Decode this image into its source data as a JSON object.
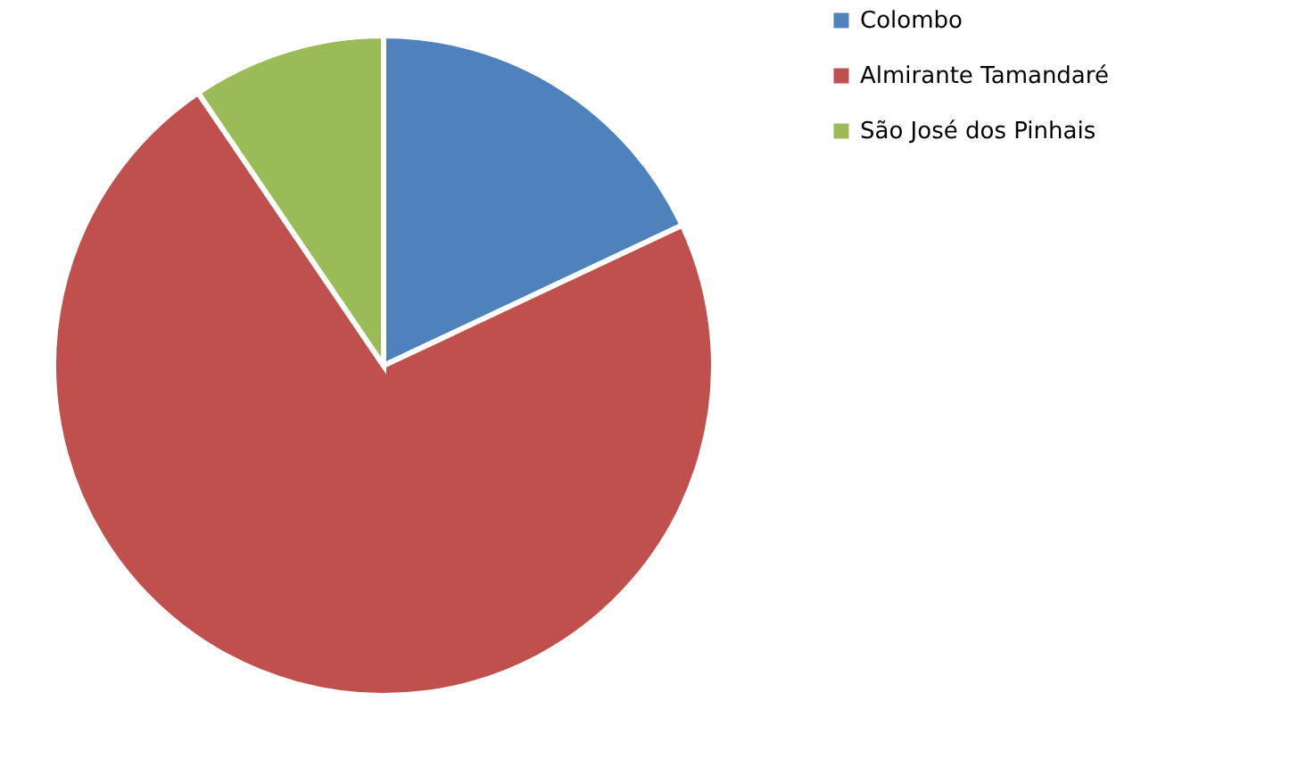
{
  "chart_data": {
    "type": "pie",
    "categories": [
      "Colombo",
      "Almirante Tamandaré",
      "São José dos Pinhais"
    ],
    "values": [
      18,
      72.5,
      9.5
    ],
    "colors": [
      "#4f81bd",
      "#c0504d",
      "#9bbb59"
    ],
    "legend": "right"
  }
}
